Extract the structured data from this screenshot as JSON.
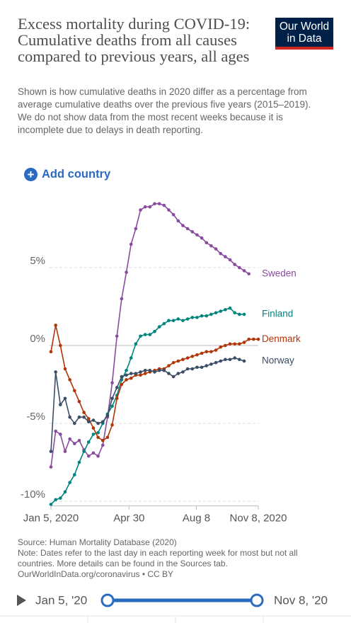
{
  "chart_data": {
    "type": "line",
    "title": "Excess mortality during COVID-19: Cumulative deaths from all causes compared to previous years, all ages",
    "subtitle": "Shown is how cumulative deaths in 2020 differ as a percentage from average cumulative deaths over the previous five years (2015–2019). We do not show data from the most recent weeks because it is incomplete due to delays in death reporting.",
    "logo": "Our World in Data",
    "add_country": "Add country",
    "source": "Source: Human Mortality Database (2020)",
    "note": "Note: Dates refer to the last day in each reporting week for most but not all countries. More details can be found in the Sources tab.",
    "url": "OurWorldInData.org/coronavirus • CC BY",
    "timeline_start": "Jan 5, '20",
    "timeline_end": "Nov 8, '20",
    "x": [
      "2020-01-05",
      "2020-01-12",
      "2020-01-19",
      "2020-01-26",
      "2020-02-02",
      "2020-02-09",
      "2020-02-16",
      "2020-02-23",
      "2020-03-01",
      "2020-03-08",
      "2020-03-15",
      "2020-03-22",
      "2020-03-29",
      "2020-04-05",
      "2020-04-12",
      "2020-04-19",
      "2020-04-26",
      "2020-05-03",
      "2020-05-10",
      "2020-05-17",
      "2020-05-24",
      "2020-05-31",
      "2020-06-07",
      "2020-06-14",
      "2020-06-21",
      "2020-06-28",
      "2020-07-05",
      "2020-07-12",
      "2020-07-19",
      "2020-07-26",
      "2020-08-02",
      "2020-08-09",
      "2020-08-16",
      "2020-08-23",
      "2020-08-30",
      "2020-09-06",
      "2020-09-13",
      "2020-09-20",
      "2020-09-27",
      "2020-10-04",
      "2020-10-11",
      "2020-10-18",
      "2020-10-25",
      "2020-11-01",
      "2020-11-08"
    ],
    "xlim": [
      "2020-01-05",
      "2020-11-08"
    ],
    "xticks": [
      {
        "value": "2020-01-05",
        "label": "Jan 5, 2020"
      },
      {
        "value": "2020-04-30",
        "label": "Apr 30"
      },
      {
        "value": "2020-08-08",
        "label": "Aug 8"
      },
      {
        "value": "2020-11-08",
        "label": "Nov 8, 2020"
      }
    ],
    "ylim": [
      -10.3,
      9.5
    ],
    "yticks": [
      {
        "value": -10,
        "label": "-10%"
      },
      {
        "value": -5,
        "label": "-5%"
      },
      {
        "value": 0,
        "label": "0%"
      },
      {
        "value": 5,
        "label": "5%"
      }
    ],
    "grid": true,
    "series": [
      {
        "name": "Sweden",
        "color": "#8a4a9e",
        "values": [
          -7.8,
          -5.5,
          -5.7,
          -6.8,
          -6.0,
          -6.3,
          -6.1,
          -6.7,
          -7.1,
          -6.9,
          -7.1,
          -6.4,
          -4.6,
          -2.4,
          0.6,
          3.0,
          4.7,
          6.5,
          7.5,
          8.7,
          8.9,
          8.9,
          9.1,
          9.1,
          9.0,
          8.7,
          8.4,
          8.0,
          7.7,
          7.5,
          7.3,
          7.1,
          6.9,
          6.6,
          6.4,
          6.2,
          5.9,
          5.7,
          5.5,
          5.2,
          5.0,
          4.8,
          4.6,
          null,
          null
        ]
      },
      {
        "name": "Finland",
        "color": "#00847e",
        "values": [
          -10.2,
          -9.9,
          -9.8,
          -9.4,
          -8.8,
          -8.3,
          -7.5,
          -6.8,
          -6.2,
          -5.7,
          -5.6,
          -5.0,
          -4.4,
          -3.9,
          -3.2,
          -2.2,
          -1.6,
          -0.8,
          0.1,
          0.6,
          0.7,
          0.7,
          0.9,
          1.2,
          1.4,
          1.6,
          1.6,
          1.7,
          1.6,
          1.7,
          1.8,
          1.8,
          1.9,
          1.9,
          2.0,
          2.1,
          2.2,
          2.3,
          2.4,
          2.1,
          2.0,
          2.0,
          null,
          null,
          null
        ]
      },
      {
        "name": "Denmark",
        "color": "#b13507",
        "values": [
          -0.4,
          1.3,
          0.0,
          -1.5,
          -2.2,
          -2.9,
          -3.6,
          -4.3,
          -4.7,
          -5.3,
          -5.9,
          -6.1,
          -5.9,
          -5.1,
          -3.4,
          -2.5,
          -2.2,
          -2.1,
          -1.9,
          -1.9,
          -1.8,
          -1.7,
          -1.6,
          -1.5,
          -1.5,
          -1.3,
          -1.1,
          -1.0,
          -0.9,
          -0.8,
          -0.7,
          -0.6,
          -0.5,
          -0.4,
          -0.4,
          -0.3,
          -0.1,
          0.0,
          0.1,
          0.1,
          0.1,
          0.2,
          0.4,
          0.4,
          0.4
        ]
      },
      {
        "name": "Norway",
        "color": "#3c4e66",
        "values": [
          -6.8,
          -1.7,
          -3.8,
          -3.4,
          -4.6,
          -5.0,
          -4.6,
          -4.6,
          -4.9,
          -4.8,
          -5.0,
          -4.9,
          -4.5,
          -3.4,
          -2.7,
          -2.0,
          -1.9,
          -1.8,
          -1.8,
          -1.7,
          -1.6,
          -1.6,
          -1.7,
          -1.6,
          -1.6,
          -1.8,
          -2.0,
          -1.8,
          -1.7,
          -1.5,
          -1.5,
          -1.4,
          -1.4,
          -1.3,
          -1.2,
          -1.1,
          -1.0,
          -0.9,
          -0.9,
          -0.8,
          -0.9,
          -1.0,
          null,
          null,
          null
        ]
      }
    ]
  }
}
